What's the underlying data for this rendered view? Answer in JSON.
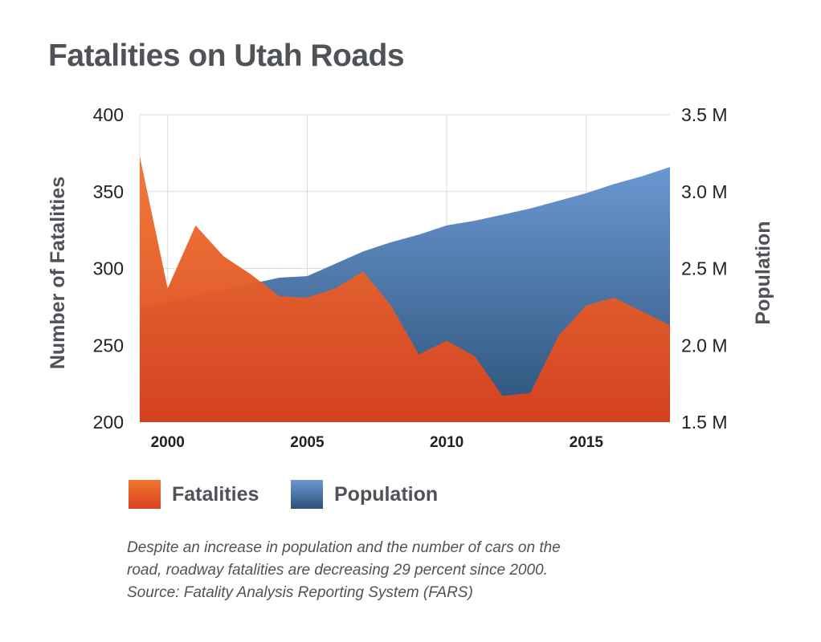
{
  "title": "Fatalities on Utah Roads",
  "chart_data": {
    "type": "area",
    "title": "Fatalities on Utah Roads",
    "x": [
      1999,
      2000,
      2001,
      2002,
      2003,
      2004,
      2005,
      2006,
      2007,
      2008,
      2009,
      2010,
      2011,
      2012,
      2013,
      2014,
      2015,
      2016,
      2017,
      2018
    ],
    "xlim": [
      1999,
      2018
    ],
    "x_ticks": [
      2000,
      2005,
      2010,
      2015
    ],
    "x_tick_labels": [
      "2000",
      "2005",
      "2010",
      "2015"
    ],
    "ylabel_left": "Number of Fatalities",
    "ylim_left": [
      200,
      400
    ],
    "y_ticks_left": [
      200,
      250,
      300,
      350,
      400
    ],
    "y_tick_labels_left": [
      "200",
      "250",
      "300",
      "350",
      "400"
    ],
    "ylabel_right": "Population",
    "ylim_right": [
      1.5,
      3.5
    ],
    "y_ticks_right": [
      1.5,
      2.0,
      2.5,
      3.0,
      3.5
    ],
    "y_tick_labels_right": [
      "1.5 M",
      "2.0 M",
      "2.5 M",
      "3.0 M",
      "3.5 M"
    ],
    "grid": true,
    "legend_position": "bottom-left",
    "series": [
      {
        "name": "Population",
        "axis": "right",
        "color_top": "#6b97d2",
        "color_bottom": "#2c5278",
        "values": [
          2.24,
          2.28,
          2.32,
          2.36,
          2.4,
          2.44,
          2.45,
          2.53,
          2.61,
          2.67,
          2.72,
          2.78,
          2.81,
          2.85,
          2.89,
          2.94,
          2.99,
          3.05,
          3.1,
          3.16
        ]
      },
      {
        "name": "Fatalities",
        "axis": "left",
        "color_top": "#f07832",
        "color_bottom": "#d9401f",
        "values": [
          373,
          287,
          328,
          308,
          296,
          282,
          281,
          287,
          298,
          276,
          244,
          253,
          243,
          217,
          219,
          256,
          276,
          281,
          272,
          263
        ]
      }
    ]
  },
  "legend": {
    "fatalities_label": "Fatalities",
    "population_label": "Population"
  },
  "caption": {
    "line1": "Despite an increase in population and the number of cars on the",
    "line2": "road, roadway fatalities are decreasing 29 percent since 2000.",
    "line3": "Source: Fatality Analysis Reporting System (FARS)"
  }
}
